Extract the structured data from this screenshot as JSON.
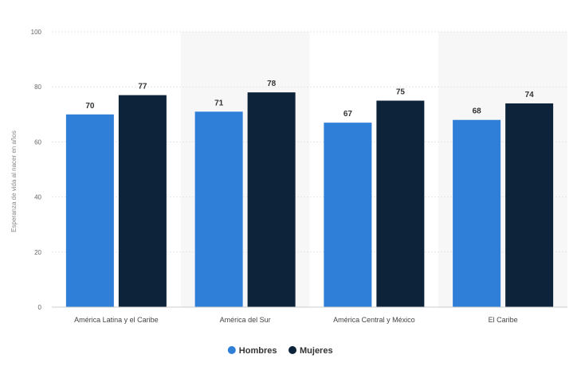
{
  "chart_data": {
    "type": "bar",
    "title": "",
    "xlabel": "",
    "ylabel": "Esperanza de vida al nacer en años",
    "ylim": [
      0,
      100
    ],
    "yticks": [
      0,
      20,
      40,
      60,
      80,
      100
    ],
    "categories": [
      "América Latina y el Caribe",
      "América del Sur",
      "América Central y México",
      "El Caribe"
    ],
    "series": [
      {
        "name": "Hombres",
        "color": "#2f7ed8",
        "values": [
          70,
          71,
          67,
          68
        ]
      },
      {
        "name": "Mujeres",
        "color": "#0d233a",
        "values": [
          77,
          78,
          75,
          74
        ]
      }
    ],
    "grid": true,
    "alternating_bands": true,
    "legend_position": "bottom-center",
    "data_labels": true
  }
}
